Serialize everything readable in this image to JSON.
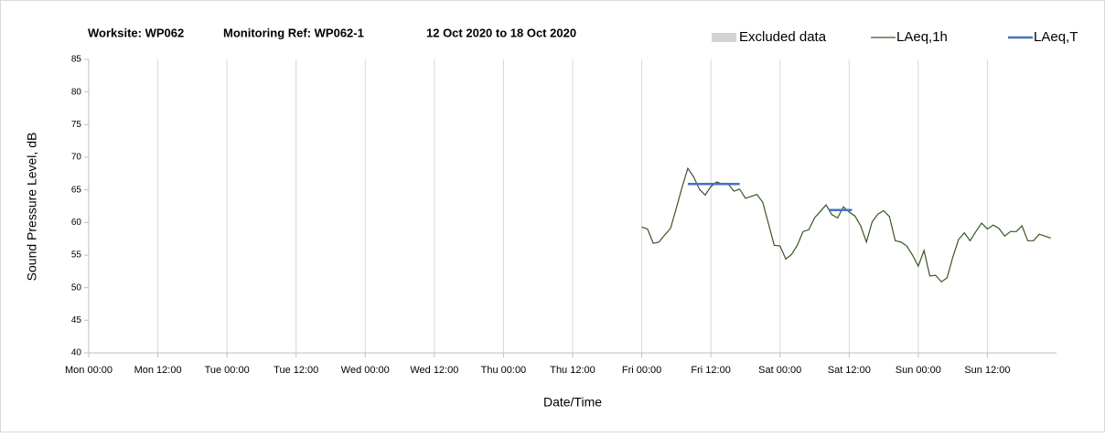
{
  "chart_data": {
    "type": "line",
    "title": [
      "Worksite: WP062",
      "Monitoring Ref: WP062-1",
      "12 Oct 2020 to 18 Oct 2020"
    ],
    "xlabel": "Date/Time",
    "ylabel": "Sound Pressure Level, dB",
    "xlim": [
      0,
      168
    ],
    "xticks": [
      {
        "value": 0,
        "label": "Mon 00:00"
      },
      {
        "value": 12,
        "label": "Mon 12:00"
      },
      {
        "value": 24,
        "label": "Tue 00:00"
      },
      {
        "value": 36,
        "label": "Tue 12:00"
      },
      {
        "value": 48,
        "label": "Wed 00:00"
      },
      {
        "value": 60,
        "label": "Wed 12:00"
      },
      {
        "value": 72,
        "label": "Thu 00:00"
      },
      {
        "value": 84,
        "label": "Thu 12:00"
      },
      {
        "value": 96,
        "label": "Fri 00:00"
      },
      {
        "value": 108,
        "label": "Fri 12:00"
      },
      {
        "value": 120,
        "label": "Sat 00:00"
      },
      {
        "value": 132,
        "label": "Sat 12:00"
      },
      {
        "value": 144,
        "label": "Sun 00:00"
      },
      {
        "value": 156,
        "label": "Sun 12:00"
      }
    ],
    "ylim": [
      40,
      85
    ],
    "yticks": [
      40,
      45,
      50,
      55,
      60,
      65,
      70,
      75,
      80,
      85
    ],
    "grid": "x",
    "legend": "top-right",
    "series": [
      {
        "name": "Excluded data",
        "color": "#d3d3d3",
        "x": [],
        "values": []
      },
      {
        "name": "LAeq,1h",
        "color": "#375623",
        "x": [
          96,
          97,
          98,
          99,
          100,
          101,
          102,
          103,
          104,
          105,
          106,
          107,
          108,
          109,
          110,
          111,
          112,
          113,
          114,
          115,
          116,
          117,
          118,
          119,
          120,
          121,
          122,
          123,
          124,
          125,
          126,
          127,
          128,
          129,
          130,
          131,
          132,
          133,
          134,
          135,
          136,
          137,
          138,
          139,
          140,
          141,
          142,
          143,
          144,
          145,
          146,
          147,
          148,
          149,
          150,
          151,
          152,
          153,
          154,
          155,
          156,
          157,
          158,
          159,
          160,
          161,
          162,
          163,
          164,
          165,
          166,
          167
        ],
        "values": [
          59.3,
          59.0,
          56.8,
          57.0,
          58.1,
          59.1,
          62.2,
          65.4,
          68.3,
          67.0,
          65.1,
          64.2,
          65.5,
          66.2,
          65.9,
          65.9,
          64.8,
          65.1,
          63.7,
          64.0,
          64.3,
          63.1,
          59.8,
          56.5,
          56.4,
          54.4,
          55.1,
          56.5,
          58.6,
          58.9,
          60.7,
          61.7,
          62.7,
          61.2,
          60.7,
          62.4,
          61.6,
          61.0,
          59.5,
          57.0,
          60.1,
          61.3,
          61.8,
          60.9,
          57.2,
          57.0,
          56.4,
          55.0,
          53.3,
          55.7,
          51.8,
          51.9,
          50.9,
          51.5,
          54.7,
          57.4,
          58.4,
          57.2,
          58.6,
          59.9,
          59.0,
          59.6,
          59.1,
          57.9,
          58.6,
          58.6,
          59.5,
          57.2,
          57.2,
          58.2,
          57.9,
          57.6
        ]
      },
      {
        "name": "LAeq,T",
        "color": "#4472c4",
        "x": [
          104,
          113,
          120,
          128.5,
          132.5
        ],
        "values": [
          65.9,
          65.9,
          null,
          61.9,
          61.9
        ]
      }
    ]
  }
}
